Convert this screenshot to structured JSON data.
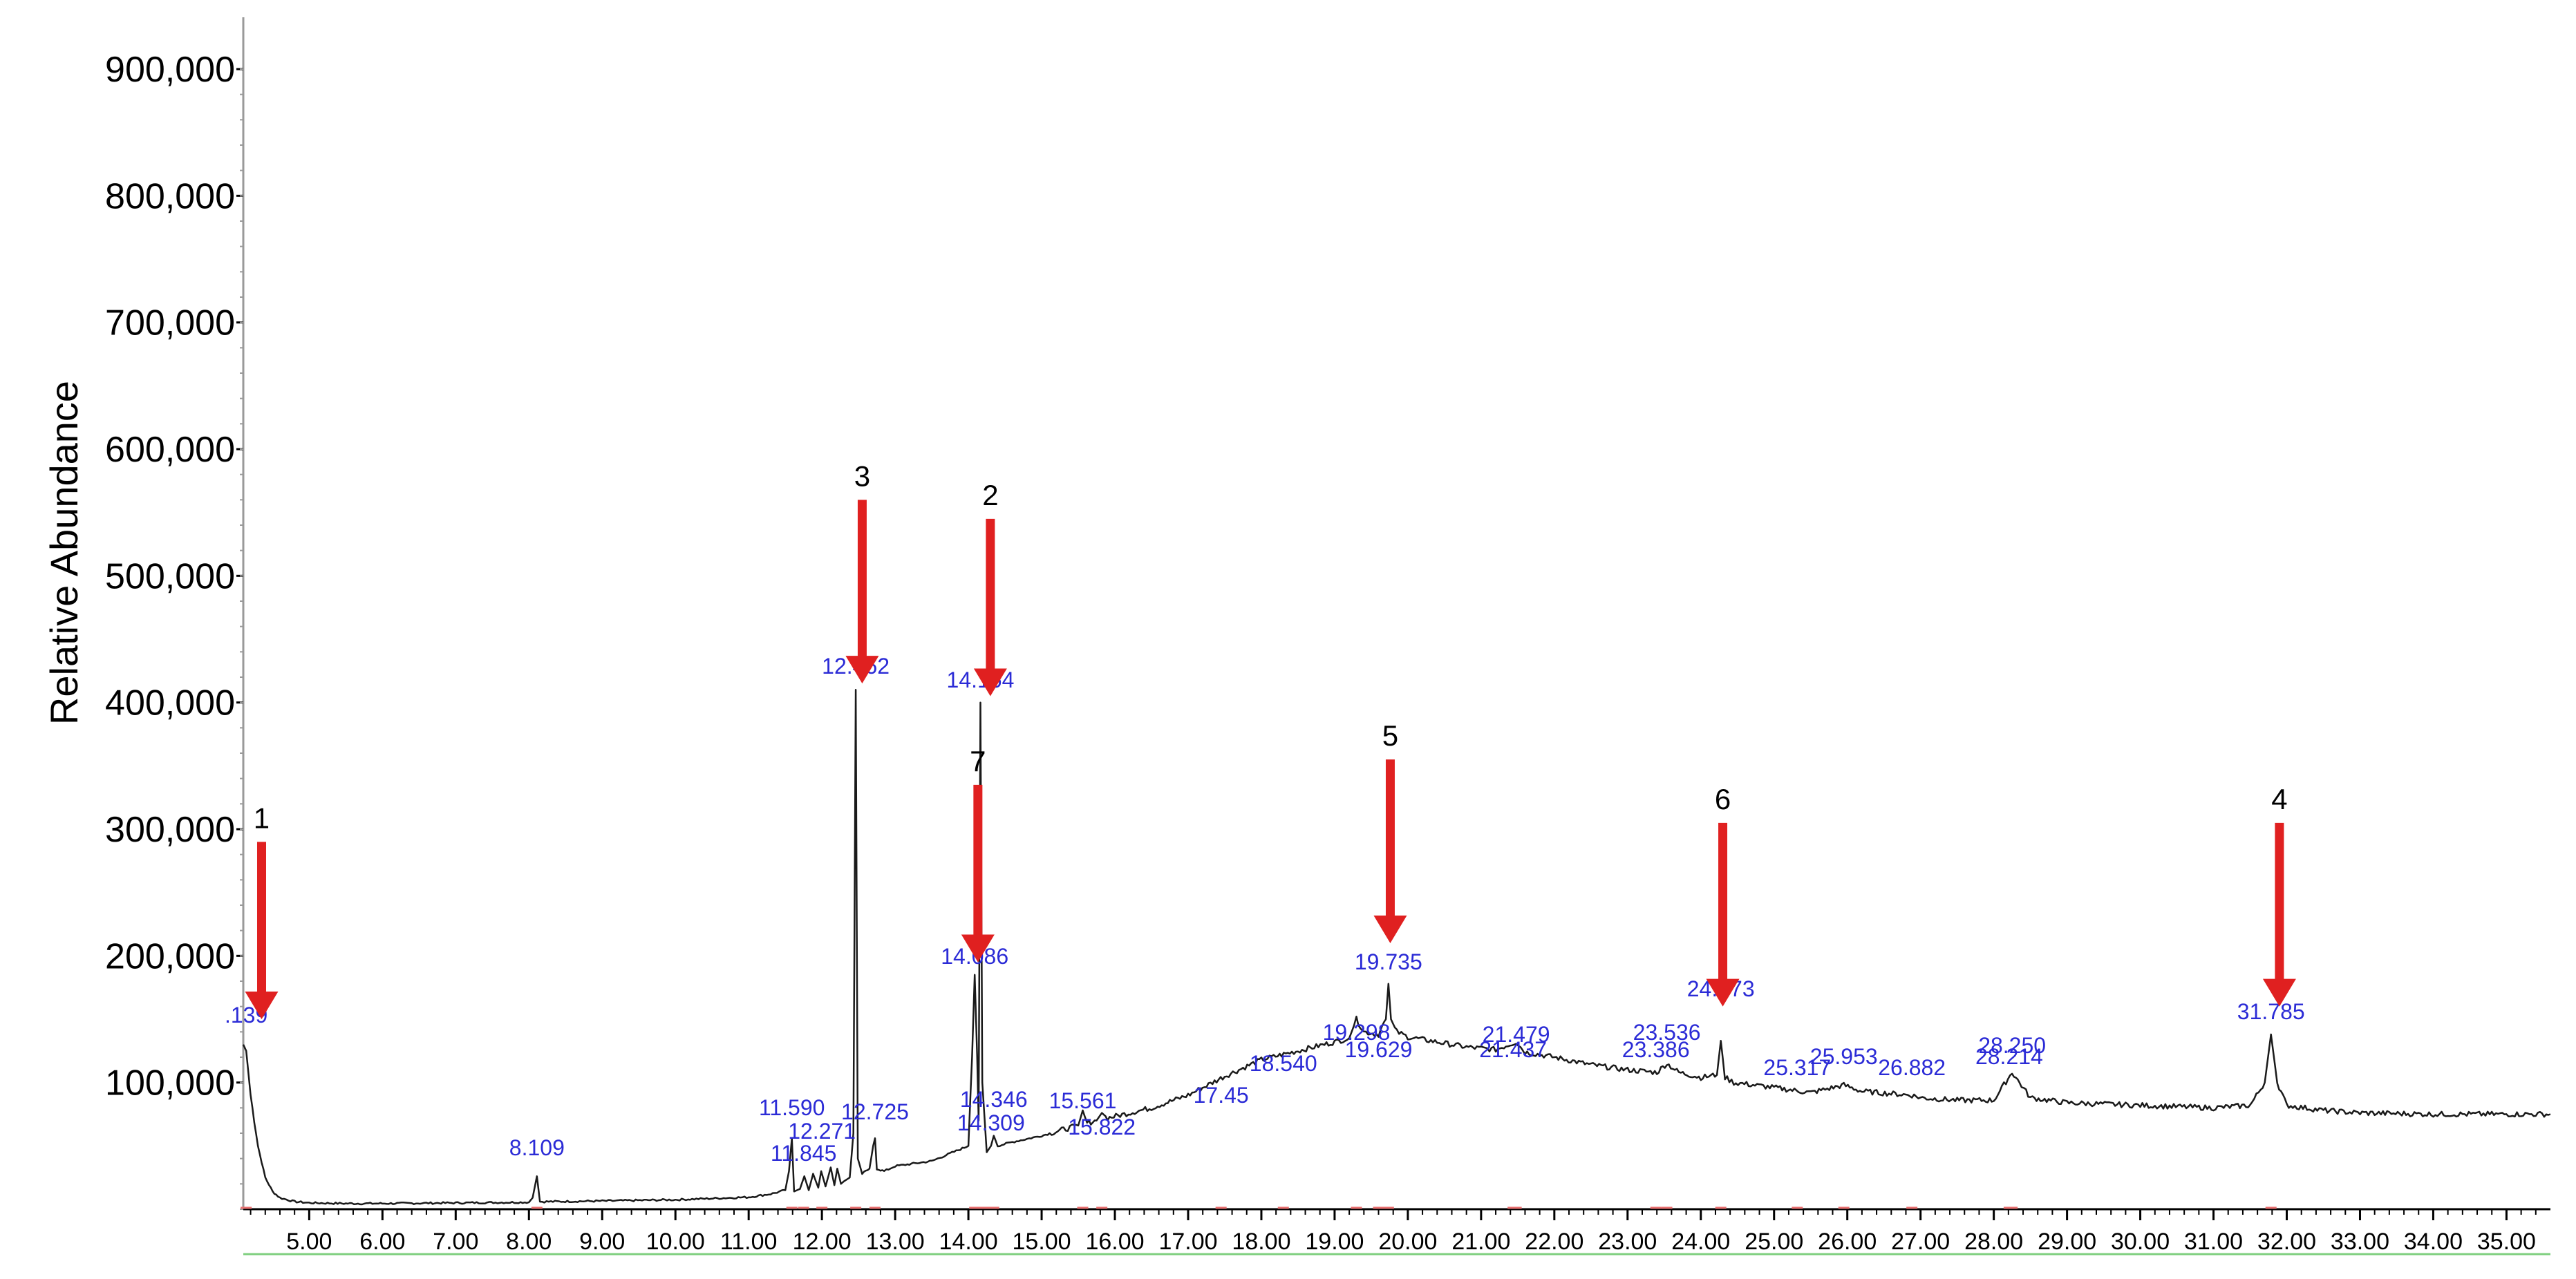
{
  "chart_data": {
    "type": "line",
    "ylabel": "Relative Abundance",
    "xlabel": "",
    "xlim": [
      4.1,
      35.6
    ],
    "ylim": [
      0,
      930000
    ],
    "x_ticks": [
      "5.00",
      "6.00",
      "7.00",
      "8.00",
      "9.00",
      "10.00",
      "11.00",
      "12.00",
      "13.00",
      "14.00",
      "15.00",
      "16.00",
      "17.00",
      "18.00",
      "19.00",
      "20.00",
      "21.00",
      "22.00",
      "23.00",
      "24.00",
      "25.00",
      "26.00",
      "27.00",
      "28.00",
      "29.00",
      "30.00",
      "31.00",
      "32.00",
      "33.00",
      "34.00",
      "35.00"
    ],
    "y_ticks": [
      "100,000",
      "200,000",
      "300,000",
      "400,000",
      "500,000",
      "600,000",
      "700,000",
      "800,000",
      "900,000"
    ],
    "y_tick_values": [
      100000,
      200000,
      300000,
      400000,
      500000,
      600000,
      700000,
      800000,
      900000
    ],
    "colors": {
      "trace": "#1a1a1a",
      "peak_label": "#2b2bd6",
      "arrow": "#e02020",
      "baseline": "#7fcf7f",
      "integration": "#e87070"
    },
    "series": [
      {
        "x": [
          4.1,
          4.14,
          4.2,
          4.3,
          4.4,
          4.5,
          4.6,
          4.8,
          5.0,
          5.5,
          6.0,
          7.0,
          8.0,
          8.05,
          8.109,
          8.15,
          8.3,
          9.0,
          10.0,
          11.0,
          11.3,
          11.5,
          11.55,
          11.59,
          11.62,
          11.7,
          11.76,
          11.82,
          11.88,
          11.95,
          11.99,
          12.05,
          12.12,
          12.17,
          12.21,
          12.26,
          12.3,
          12.38,
          12.43,
          12.462,
          12.49,
          12.55,
          12.65,
          12.7,
          12.725,
          12.75,
          12.85,
          13.0,
          13.5,
          14.0,
          14.05,
          14.086,
          14.12,
          14.14,
          14.164,
          14.19,
          14.25,
          14.309,
          14.346,
          14.4,
          14.6,
          15.0,
          15.3,
          15.5,
          15.561,
          15.62,
          15.75,
          15.822,
          15.9,
          16.5,
          17.0,
          17.5,
          18.0,
          18.5,
          19.0,
          19.2,
          19.298,
          19.4,
          19.6,
          19.7,
          19.735,
          19.77,
          19.85,
          20.0,
          20.4,
          20.8,
          21.2,
          21.479,
          21.6,
          22.0,
          22.5,
          23.0,
          23.4,
          23.536,
          23.7,
          24.0,
          24.22,
          24.273,
          24.33,
          24.45,
          25.0,
          25.5,
          25.953,
          26.2,
          26.882,
          27.0,
          27.5,
          28.0,
          28.25,
          28.35,
          28.5,
          29.0,
          30.0,
          31.0,
          31.5,
          31.7,
          31.785,
          31.87,
          32.0,
          32.5,
          33.0,
          34.0,
          35.0,
          35.6
        ],
        "y": [
          130000,
          125000,
          90000,
          50000,
          25000,
          14000,
          9000,
          6000,
          5000,
          4500,
          4500,
          5000,
          5500,
          9000,
          26000,
          6000,
          6000,
          6500,
          7500,
          9500,
          12000,
          15000,
          30000,
          56000,
          14000,
          16000,
          26000,
          15000,
          28000,
          17000,
          30000,
          18000,
          33000,
          19000,
          32000,
          20000,
          22000,
          25000,
          60000,
          410000,
          40000,
          28000,
          32000,
          50000,
          56000,
          32000,
          30000,
          34000,
          38000,
          50000,
          120000,
          185000,
          120000,
          70000,
          400000,
          100000,
          45000,
          50000,
          58000,
          50000,
          53000,
          58000,
          63000,
          66000,
          78000,
          68000,
          70000,
          76000,
          72000,
          80000,
          90000,
          105000,
          118000,
          125000,
          132000,
          135000,
          150000,
          140000,
          138000,
          150000,
          178000,
          150000,
          140000,
          136000,
          132000,
          128000,
          126000,
          132000,
          124000,
          120000,
          114000,
          110000,
          108000,
          115000,
          108000,
          104000,
          106000,
          133000,
          104000,
          100000,
          96000,
          92000,
          98000,
          93000,
          90000,
          88000,
          86000,
          86000,
          108000,
          100000,
          88000,
          84000,
          82000,
          80000,
          82000,
          100000,
          138000,
          100000,
          82000,
          78000,
          76000,
          75000,
          75000,
          75000
        ]
      }
    ],
    "peak_labels": [
      {
        "x": 4.139,
        "label": ".139"
      },
      {
        "x": 8.109,
        "label": "8.109"
      },
      {
        "x": 11.59,
        "label": "11.590"
      },
      {
        "x": 11.75,
        "label": "11.845"
      },
      {
        "x": 12.0,
        "label": "12.271"
      },
      {
        "x": 12.462,
        "label": "12.462"
      },
      {
        "x": 12.725,
        "label": "12.725"
      },
      {
        "x": 14.164,
        "label": "14.164"
      },
      {
        "x": 14.086,
        "label": "14.086"
      },
      {
        "x": 14.346,
        "label": "14.346"
      },
      {
        "x": 14.309,
        "label": "14.309"
      },
      {
        "x": 15.561,
        "label": "15.561"
      },
      {
        "x": 15.822,
        "label": "15.822"
      },
      {
        "x": 17.45,
        "label": "17.45"
      },
      {
        "x": 18.3,
        "label": "18.540"
      },
      {
        "x": 19.298,
        "label": "19.298"
      },
      {
        "x": 19.6,
        "label": "19.629"
      },
      {
        "x": 19.735,
        "label": "19.735"
      },
      {
        "x": 21.479,
        "label": "21.479"
      },
      {
        "x": 21.437,
        "label": "21.437"
      },
      {
        "x": 23.536,
        "label": "23.536"
      },
      {
        "x": 23.386,
        "label": "23.386"
      },
      {
        "x": 24.273,
        "label": "24.273"
      },
      {
        "x": 25.317,
        "label": "25.317"
      },
      {
        "x": 25.953,
        "label": "25.953"
      },
      {
        "x": 26.882,
        "label": "26.882"
      },
      {
        "x": 28.25,
        "label": "28.250"
      },
      {
        "x": 28.21,
        "label": "28.214"
      },
      {
        "x": 31.785,
        "label": "31.785"
      }
    ],
    "annotations": [
      {
        "label": "1",
        "x": 4.35,
        "y_top": 290000,
        "y_tip": 150000
      },
      {
        "label": "3",
        "x": 12.55,
        "y_top": 560000,
        "y_tip": 415000
      },
      {
        "label": "2",
        "x": 14.3,
        "y_top": 545000,
        "y_tip": 405000
      },
      {
        "label": "7",
        "x": 14.13,
        "y_top": 335000,
        "y_tip": 195000
      },
      {
        "label": "5",
        "x": 19.76,
        "y_top": 355000,
        "y_tip": 210000
      },
      {
        "label": "6",
        "x": 24.3,
        "y_top": 305000,
        "y_tip": 160000
      },
      {
        "label": "4",
        "x": 31.9,
        "y_top": 305000,
        "y_tip": 160000
      }
    ]
  }
}
